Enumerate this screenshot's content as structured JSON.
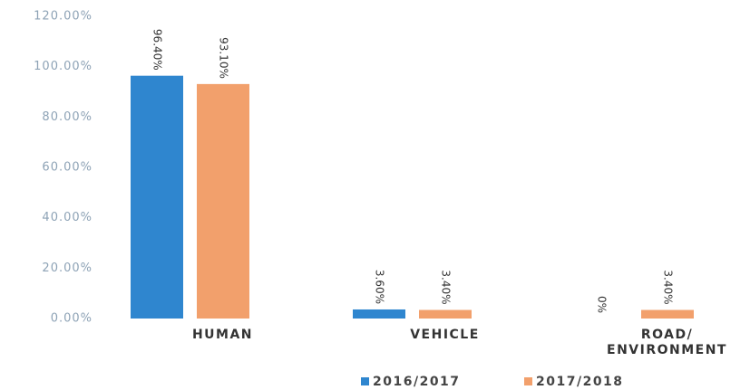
{
  "chart_data": {
    "type": "bar",
    "categories": [
      "HUMAN",
      "VEHICLE",
      "ROAD/ ENVIRONMENT"
    ],
    "series": [
      {
        "name": "2016/2017",
        "color": "#2f86cf",
        "values": [
          96.4,
          3.6,
          0
        ],
        "value_labels": [
          "96.40%",
          "3.60%",
          "0%"
        ]
      },
      {
        "name": "2017/2018",
        "color": "#f2a06c",
        "values": [
          93.1,
          3.4,
          3.4
        ],
        "value_labels": [
          "93.10%",
          "3.40%",
          "3.40%"
        ]
      }
    ],
    "ylim": [
      0,
      120
    ],
    "yticks": [
      {
        "value": 0,
        "label": "0.00%"
      },
      {
        "value": 20,
        "label": "20.00%"
      },
      {
        "value": 40,
        "label": "40.00%"
      },
      {
        "value": 60,
        "label": "60.00%"
      },
      {
        "value": 80,
        "label": "80.00%"
      },
      {
        "value": 100,
        "label": "100.00%"
      },
      {
        "value": 120,
        "label": "120.00%"
      }
    ],
    "grid": false
  }
}
